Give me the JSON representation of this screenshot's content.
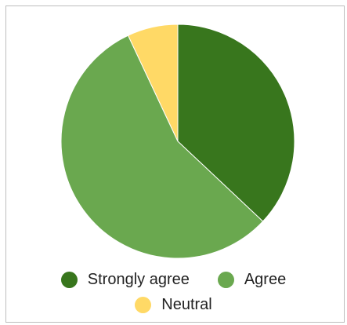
{
  "chart_data": {
    "type": "pie",
    "title": "",
    "categories": [
      "Strongly agree",
      "Agree",
      "Neutral"
    ],
    "values": [
      37,
      56,
      7
    ],
    "colors": [
      "#38761d",
      "#6aa84f",
      "#ffd966"
    ],
    "start_angle_deg": 0,
    "direction": "clockwise",
    "legend_placement": "bottom",
    "border": true
  },
  "legend": {
    "items": [
      {
        "label": "Strongly agree",
        "color": "#38761d"
      },
      {
        "label": "Agree",
        "color": "#6aa84f"
      },
      {
        "label": "Neutral",
        "color": "#ffd966"
      }
    ]
  }
}
